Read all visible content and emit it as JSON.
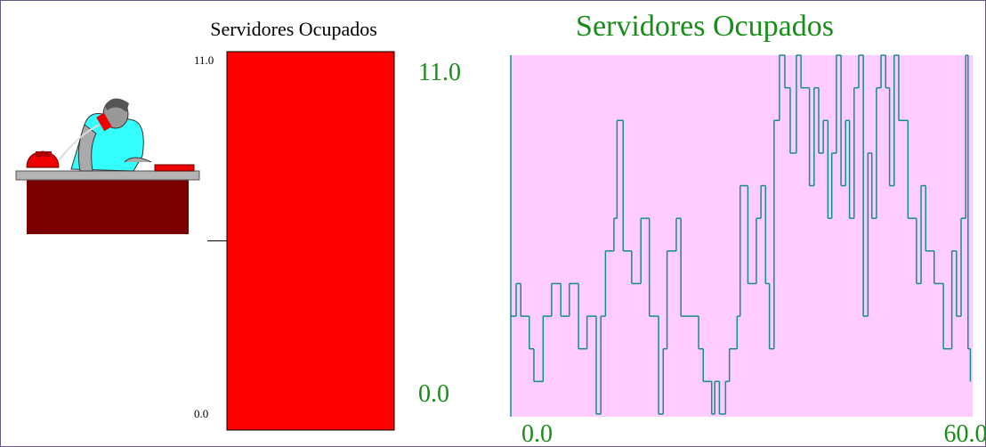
{
  "chart_data": [
    {
      "type": "bar",
      "title": "Servidores Ocupados",
      "values": [
        11
      ],
      "color": "#ff0000",
      "ylim": [
        0,
        11
      ],
      "yticks": [
        {
          "value": 0,
          "label": "0.0"
        },
        {
          "value": 11,
          "label": "11.0"
        }
      ]
    },
    {
      "type": "line",
      "step": true,
      "title": "Servidores Ocupados",
      "color": "#138c8c",
      "background": "#ffccff",
      "tick_color": "#1a8c1a",
      "x": [
        0,
        0.7,
        1.3,
        2.4,
        3.0,
        4.2,
        5.3,
        6.5,
        7.6,
        8.8,
        9.9,
        11.1,
        11.7,
        12.3,
        13.4,
        13.8,
        14.6,
        15.7,
        16.9,
        18.0,
        19.2,
        19.8,
        20.3,
        21.5,
        22.1,
        23.2,
        24.4,
        25.0,
        26.1,
        26.5,
        27.1,
        27.9,
        28.4,
        29.4,
        29.8,
        30.8,
        31.9,
        32.5,
        33.1,
        33.6,
        34.2,
        34.9,
        35.6,
        36.3,
        37.1,
        37.7,
        38.8,
        39.4,
        40.0,
        40.6,
        41.2,
        41.7,
        42.3,
        42.9,
        43.5,
        44.0,
        44.6,
        45.2,
        45.8,
        46.4,
        46.9,
        47.5,
        48.1,
        48.7,
        49.2,
        49.8,
        50.4,
        51.6,
        52.7,
        53.3,
        53.9,
        55.0,
        56.2,
        57.3,
        57.9,
        58.5,
        59.1,
        59.4,
        59.7
      ],
      "values": [
        3,
        4,
        3,
        2,
        1,
        3,
        4,
        3,
        4,
        2,
        3,
        0,
        3,
        5,
        6,
        9,
        5,
        4,
        6,
        3,
        0,
        2,
        5,
        6,
        3,
        3,
        2,
        1,
        0,
        1,
        0,
        1,
        2,
        3,
        7,
        4,
        6,
        7,
        4,
        2,
        9,
        11,
        10,
        8,
        11,
        10,
        7,
        10,
        8,
        9,
        6,
        8,
        11,
        7,
        9,
        6,
        10,
        11,
        3,
        8,
        6,
        10,
        11,
        10,
        7,
        11,
        9,
        6,
        4,
        7,
        5,
        4,
        2,
        5,
        3,
        6,
        11,
        2,
        1
      ],
      "xlim": [
        0,
        60
      ],
      "ylim": [
        0,
        11
      ],
      "xticks": [
        {
          "value": 0,
          "label": "0.0"
        },
        {
          "value": 60,
          "label": "60.0"
        }
      ],
      "yticks": [
        {
          "value": 0,
          "label": "0.0"
        },
        {
          "value": 11,
          "label": "11.0"
        }
      ]
    }
  ]
}
